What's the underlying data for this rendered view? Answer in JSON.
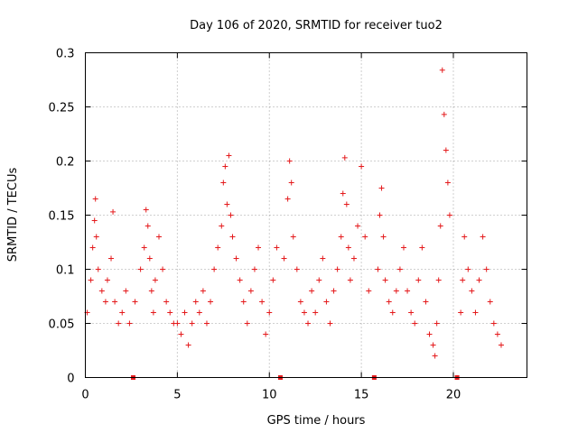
{
  "chart_data": {
    "type": "scatter",
    "title": "Day 106 of 2020, SRMTID for receiver tuo2",
    "xlabel": "GPS time / hours",
    "ylabel": "SRMTID / TECUs",
    "xlim": [
      0,
      24
    ],
    "ylim": [
      0,
      0.3
    ],
    "x_ticks": [
      0,
      5,
      10,
      15,
      20
    ],
    "x_tick_labels": [
      "0",
      "5",
      "10",
      "15",
      "20"
    ],
    "y_ticks": [
      0,
      0.05,
      0.1,
      0.15,
      0.2,
      0.25,
      0.3
    ],
    "y_tick_labels": [
      "0",
      "0.05",
      "0.1",
      "0.15",
      "0.2",
      "0.25",
      "0.3"
    ],
    "grid": true,
    "marker": "plus",
    "color": "#e41a1c",
    "data_gaps_hours": [
      2.6,
      10.6,
      15.7,
      20.2
    ],
    "series": [
      {
        "name": "SRMTID",
        "x": [
          0.1,
          0.3,
          0.4,
          0.5,
          0.55,
          0.6,
          0.7,
          0.9,
          1.1,
          1.2,
          1.4,
          1.5,
          1.6,
          1.8,
          2.0,
          2.2,
          2.4,
          2.7,
          3.0,
          3.2,
          3.3,
          3.4,
          3.5,
          3.6,
          3.7,
          3.8,
          4.0,
          4.2,
          4.4,
          4.6,
          4.8,
          5.0,
          5.2,
          5.4,
          5.6,
          5.8,
          6.0,
          6.2,
          6.4,
          6.6,
          6.8,
          7.0,
          7.2,
          7.4,
          7.5,
          7.6,
          7.7,
          7.8,
          7.9,
          8.0,
          8.2,
          8.4,
          8.6,
          8.8,
          9.0,
          9.2,
          9.4,
          9.6,
          9.8,
          10.0,
          10.2,
          10.4,
          10.8,
          11.0,
          11.1,
          11.2,
          11.3,
          11.5,
          11.7,
          11.9,
          12.1,
          12.3,
          12.5,
          12.7,
          12.9,
          13.1,
          13.3,
          13.5,
          13.7,
          13.9,
          14.0,
          14.1,
          14.2,
          14.3,
          14.4,
          14.6,
          14.8,
          15.0,
          15.2,
          15.4,
          15.9,
          16.0,
          16.1,
          16.2,
          16.3,
          16.5,
          16.7,
          16.9,
          17.1,
          17.3,
          17.5,
          17.7,
          17.9,
          18.1,
          18.3,
          18.5,
          18.7,
          18.9,
          19.0,
          19.1,
          19.2,
          19.3,
          19.4,
          19.5,
          19.6,
          19.7,
          19.8,
          20.4,
          20.5,
          20.6,
          20.8,
          21.0,
          21.2,
          21.4,
          21.6,
          21.8,
          22.0,
          22.2,
          22.4,
          22.6
        ],
        "y": [
          0.06,
          0.09,
          0.12,
          0.145,
          0.165,
          0.13,
          0.1,
          0.08,
          0.07,
          0.09,
          0.11,
          0.153,
          0.07,
          0.05,
          0.06,
          0.08,
          0.05,
          0.07,
          0.1,
          0.12,
          0.155,
          0.14,
          0.11,
          0.08,
          0.06,
          0.09,
          0.13,
          0.1,
          0.07,
          0.06,
          0.05,
          0.05,
          0.04,
          0.06,
          0.03,
          0.05,
          0.07,
          0.06,
          0.08,
          0.05,
          0.07,
          0.1,
          0.12,
          0.14,
          0.18,
          0.195,
          0.16,
          0.205,
          0.15,
          0.13,
          0.11,
          0.09,
          0.07,
          0.05,
          0.08,
          0.1,
          0.12,
          0.07,
          0.04,
          0.06,
          0.09,
          0.12,
          0.11,
          0.165,
          0.2,
          0.18,
          0.13,
          0.1,
          0.07,
          0.06,
          0.05,
          0.08,
          0.06,
          0.09,
          0.11,
          0.07,
          0.05,
          0.08,
          0.1,
          0.13,
          0.17,
          0.203,
          0.16,
          0.12,
          0.09,
          0.11,
          0.14,
          0.195,
          0.13,
          0.08,
          0.1,
          0.15,
          0.175,
          0.13,
          0.09,
          0.07,
          0.06,
          0.08,
          0.1,
          0.12,
          0.08,
          0.06,
          0.05,
          0.09,
          0.12,
          0.07,
          0.04,
          0.03,
          0.02,
          0.05,
          0.09,
          0.14,
          0.284,
          0.243,
          0.21,
          0.18,
          0.15,
          0.06,
          0.09,
          0.13,
          0.1,
          0.08,
          0.06,
          0.09,
          0.13,
          0.1,
          0.07,
          0.05,
          0.04,
          0.03
        ]
      }
    ]
  }
}
